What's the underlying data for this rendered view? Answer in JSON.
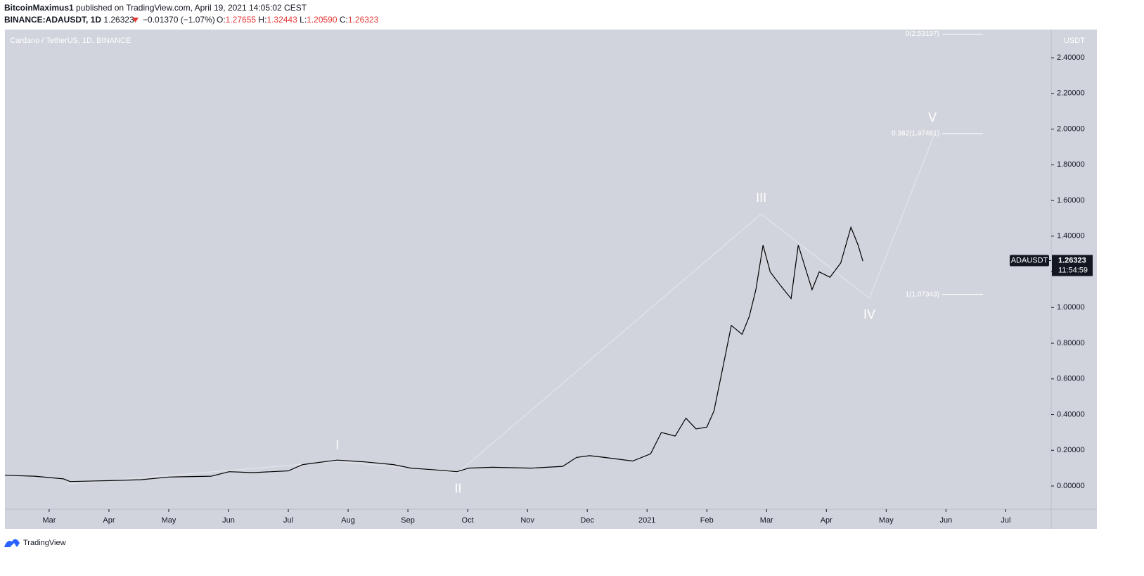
{
  "header": {
    "author": "BitcoinMaximus1",
    "published": "published on TradingView.com, April 19, 2021 14:05:02 CEST",
    "symbol": "BINANCE:ADAUSDT, 1D",
    "last": "1.26323",
    "change": "−0.01370 (−1.07%)",
    "ohlc": [
      {
        "label": "O:",
        "value": "1.27655"
      },
      {
        "label": "H:",
        "value": "1.32443"
      },
      {
        "label": "L:",
        "value": "1.20590"
      },
      {
        "label": "C:",
        "value": "1.26323"
      }
    ]
  },
  "chart_data": {
    "type": "line",
    "title": "Cardano / TetherUS, 1D, BINANCE",
    "y_unit": "USDT",
    "x": [
      0.26,
      0.76,
      1.24,
      1.35,
      2.01,
      2.53,
      3.0,
      3.71,
      4.01,
      4.41,
      5.0,
      5.24,
      5.47,
      5.82,
      6.29,
      6.76,
      7.05,
      7.47,
      7.82,
      8.02,
      8.41,
      9.06,
      9.59,
      9.82,
      10.04,
      10.29,
      10.76,
      11.06,
      11.24,
      11.47,
      11.65,
      11.82,
      12.0,
      12.12,
      12.29,
      12.41,
      12.59,
      12.71,
      12.82,
      12.94,
      13.06,
      13.24,
      13.41,
      13.53,
      13.65,
      13.76,
      13.88,
      14.06,
      14.24,
      14.41,
      14.53,
      14.61
    ],
    "series": [
      {
        "name": "ADAUSDT",
        "color": "#000000",
        "values": [
          0.06,
          0.055,
          0.04,
          0.025,
          0.03,
          0.035,
          0.05,
          0.055,
          0.08,
          0.075,
          0.085,
          0.12,
          0.13,
          0.145,
          0.135,
          0.12,
          0.1,
          0.09,
          0.08,
          0.1,
          0.105,
          0.1,
          0.11,
          0.16,
          0.17,
          0.16,
          0.14,
          0.18,
          0.3,
          0.28,
          0.38,
          0.32,
          0.33,
          0.42,
          0.7,
          0.9,
          0.85,
          0.95,
          1.1,
          1.35,
          1.2,
          1.12,
          1.05,
          1.35,
          1.22,
          1.1,
          1.2,
          1.17,
          1.25,
          1.45,
          1.35,
          1.26
        ]
      }
    ],
    "last_price": {
      "label": "1.26323",
      "value": 1.26323,
      "name": "ADAUSDT",
      "countdown": "11:54:59"
    },
    "wave": {
      "x": [
        1.31,
        5.82,
        7.84,
        12.91,
        14.72,
        15.81
      ],
      "values": [
        0.012,
        0.138,
        0.075,
        1.525,
        1.052,
        1.974
      ],
      "labels": [
        null,
        "I",
        "II",
        "III",
        "IV",
        "V"
      ],
      "color": "#e8e8ee"
    },
    "fib_levels": [
      {
        "label": "0(2.53197)",
        "value": 2.53197
      },
      {
        "label": "0.382(1.97481)",
        "value": 1.97481
      },
      {
        "label": "1(1.07343)",
        "value": 1.07343
      }
    ],
    "xlim": [
      0.26,
      17.76
    ],
    "ylim": [
      -0.13,
      2.558
    ],
    "xticks": [
      {
        "value": 1,
        "label": "Mar"
      },
      {
        "value": 2,
        "label": "Apr"
      },
      {
        "value": 3,
        "label": "May"
      },
      {
        "value": 4,
        "label": "Jun"
      },
      {
        "value": 5,
        "label": "Jul"
      },
      {
        "value": 6,
        "label": "Aug"
      },
      {
        "value": 7,
        "label": "Sep"
      },
      {
        "value": 8,
        "label": "Oct"
      },
      {
        "value": 9,
        "label": "Nov"
      },
      {
        "value": 10,
        "label": "Dec"
      },
      {
        "value": 11,
        "label": "2021"
      },
      {
        "value": 12,
        "label": "Feb"
      },
      {
        "value": 13,
        "label": "Mar"
      },
      {
        "value": 14,
        "label": "Apr"
      },
      {
        "value": 15,
        "label": "May"
      },
      {
        "value": 16,
        "label": "Jun"
      },
      {
        "value": 17,
        "label": "Jul"
      }
    ],
    "yticks": [
      {
        "value": 0,
        "label": "0.00000"
      },
      {
        "value": 0.2,
        "label": "0.20000"
      },
      {
        "value": 0.4,
        "label": "0.40000"
      },
      {
        "value": 0.6,
        "label": "0.60000"
      },
      {
        "value": 0.8,
        "label": "0.80000"
      },
      {
        "value": 1.0,
        "label": "1.00000"
      },
      {
        "value": 1.2,
        "label": "1.20000"
      },
      {
        "value": 1.4,
        "label": "1.40000"
      },
      {
        "value": 1.6,
        "label": "1.60000"
      },
      {
        "value": 1.8,
        "label": "1.80000"
      },
      {
        "value": 2.0,
        "label": "2.00000"
      },
      {
        "value": 2.2,
        "label": "2.20000"
      },
      {
        "value": 2.4,
        "label": "2.40000"
      }
    ],
    "grid": false
  },
  "footer": {
    "brand": "TradingView"
  }
}
